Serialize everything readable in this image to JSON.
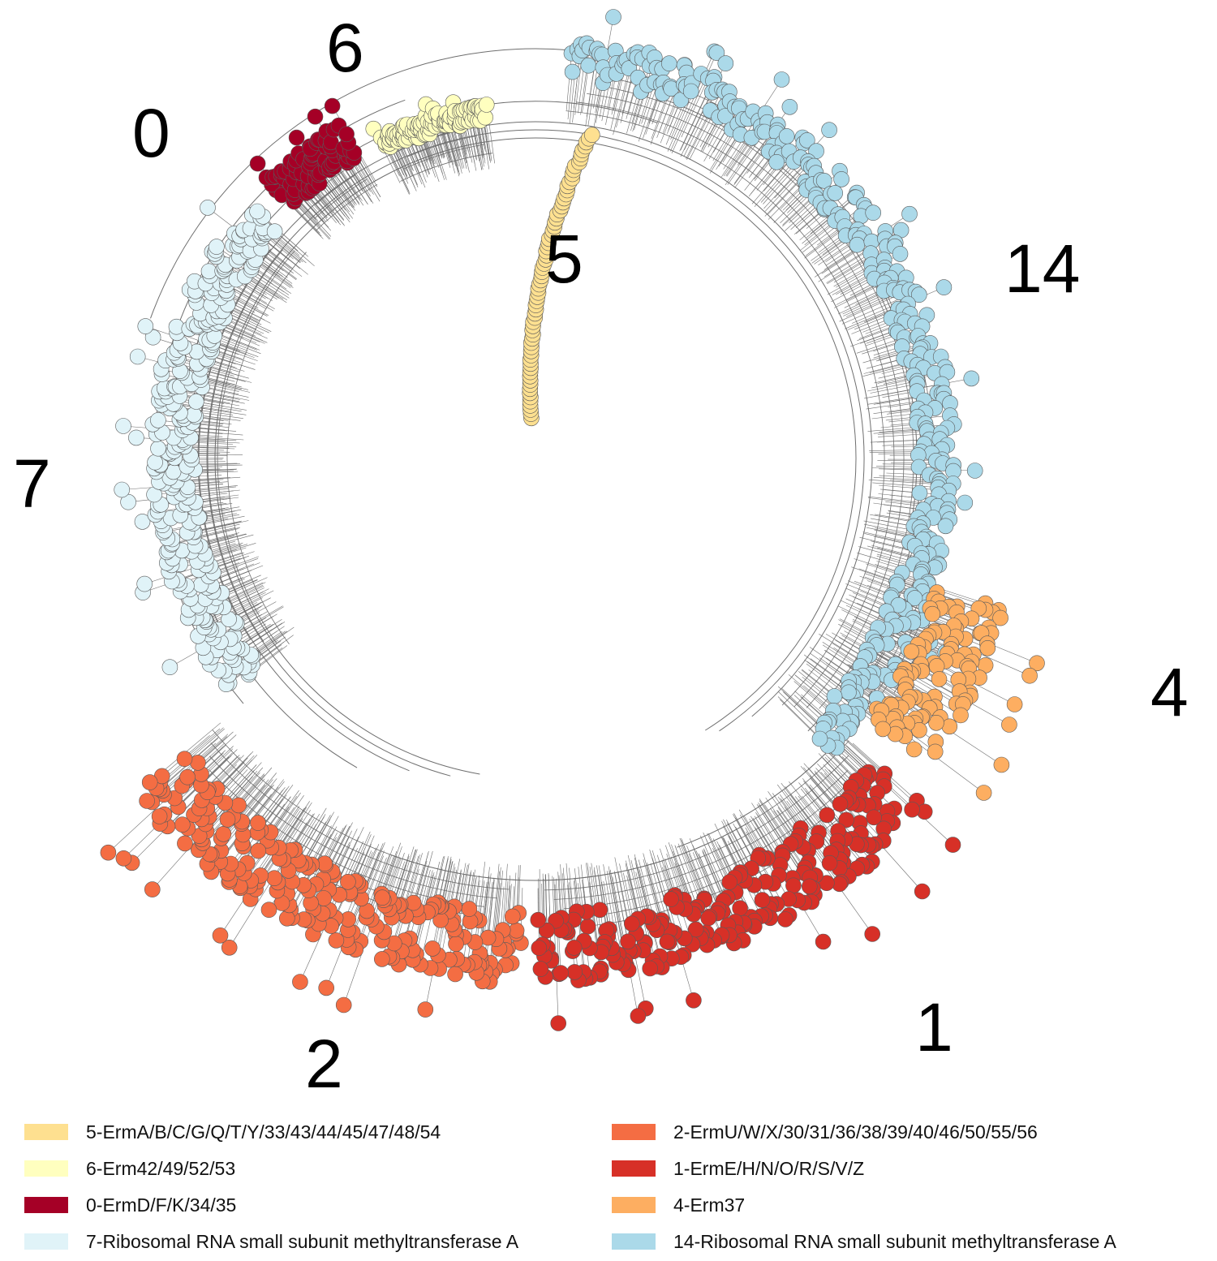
{
  "clusters": [
    {
      "id": "0",
      "label": "0",
      "color": "#a50026",
      "legend": "0-ErmD/F/K/34/35"
    },
    {
      "id": "1",
      "label": "1",
      "color": "#d73027",
      "legend": "1-ErmE/H/N/O/R/S/V/Z"
    },
    {
      "id": "2",
      "label": "2",
      "color": "#f46d43",
      "legend": "2-ErmU/W/X/30/31/36/38/39/40/46/50/55/56"
    },
    {
      "id": "4",
      "label": "4",
      "color": "#fdae61",
      "legend": "4-Erm37"
    },
    {
      "id": "5",
      "label": "5",
      "color": "#fee090",
      "legend": "5-ErmA/B/C/G/Q/T/Y/33/43/44/45/47/48/54"
    },
    {
      "id": "6",
      "label": "6",
      "color": "#ffffbf",
      "legend": "6-Erm42/49/52/53"
    },
    {
      "id": "7",
      "label": "7",
      "color": "#e0f3f8",
      "legend": "7-Ribosomal RNA small subunit methyltransferase A"
    },
    {
      "id": "14",
      "label": "14",
      "color": "#abd9e9",
      "legend": "14-Ribosomal RNA small subunit methyltransferase A"
    }
  ],
  "legend_left": [
    "5",
    "6",
    "0",
    "7"
  ],
  "legend_right": [
    "2",
    "1",
    "4",
    "14"
  ],
  "branch_color": "#6e6e6e"
}
